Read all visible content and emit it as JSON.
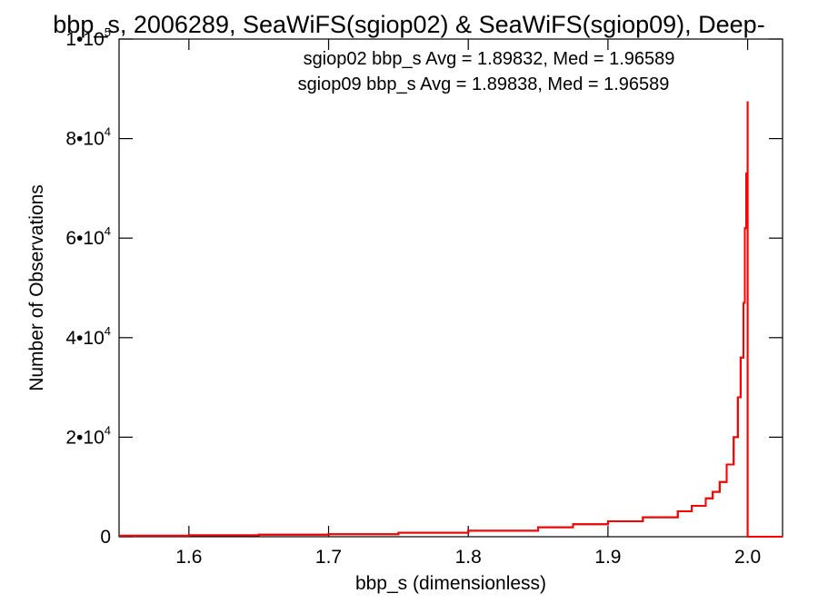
{
  "chart_data": {
    "type": "line",
    "title": "bbp_s, 2006289, SeaWiFS(sgiop02) & SeaWiFS(sgiop09), Deep-",
    "xlabel": "bbp_s (dimensionless)",
    "ylabel": "Number of Observations",
    "xlim": [
      1.55,
      2.025
    ],
    "ylim": [
      0,
      100000
    ],
    "x_ticks": [
      {
        "value": 1.6,
        "label": "1.6"
      },
      {
        "value": 1.7,
        "label": "1.7"
      },
      {
        "value": 1.8,
        "label": "1.8"
      },
      {
        "value": 1.9,
        "label": "1.9"
      },
      {
        "value": 2.0,
        "label": "2.0"
      }
    ],
    "y_ticks": [
      {
        "value": 0,
        "mantissa": "0",
        "exponent": ""
      },
      {
        "value": 20000,
        "mantissa": "2•10",
        "exponent": "4"
      },
      {
        "value": 40000,
        "mantissa": "4•10",
        "exponent": "4"
      },
      {
        "value": 60000,
        "mantissa": "6•10",
        "exponent": "4"
      },
      {
        "value": 80000,
        "mantissa": "8•10",
        "exponent": "4"
      },
      {
        "value": 100000,
        "mantissa": "1•10",
        "exponent": "5"
      }
    ],
    "grid": false,
    "legend_position": "top-right",
    "series": [
      {
        "name": "sgiop02",
        "label": "sgiop02 bbp_s Avg = 1.89832, Med = 1.96589",
        "color": "#000000",
        "x": [
          1.55,
          1.6,
          1.65,
          1.7,
          1.75,
          1.8,
          1.85,
          1.875,
          1.9,
          1.925,
          1.95,
          1.96,
          1.97,
          1.975,
          1.98,
          1.985,
          1.99,
          1.993,
          1.995,
          1.997,
          1.998,
          1.999,
          2.0,
          2.0,
          2.025
        ],
        "y": [
          200,
          300,
          400,
          500,
          800,
          1200,
          1900,
          2500,
          3100,
          3900,
          5100,
          6200,
          7700,
          9000,
          11000,
          14500,
          20000,
          28000,
          36000,
          47000,
          62000,
          73000,
          87500,
          0,
          0
        ]
      },
      {
        "name": "sgiop09",
        "label": "sgiop09 bbp_s Avg = 1.89838, Med = 1.96589",
        "color": "#ff0000",
        "x": [
          1.55,
          1.6,
          1.65,
          1.7,
          1.75,
          1.8,
          1.85,
          1.875,
          1.9,
          1.925,
          1.95,
          1.96,
          1.97,
          1.975,
          1.98,
          1.985,
          1.99,
          1.993,
          1.995,
          1.997,
          1.998,
          1.999,
          2.0,
          2.0,
          2.025
        ],
        "y": [
          200,
          300,
          400,
          500,
          800,
          1200,
          1900,
          2500,
          3100,
          3900,
          5100,
          6200,
          7700,
          9000,
          11000,
          14500,
          20000,
          28000,
          36000,
          47000,
          62000,
          73000,
          87500,
          0,
          0
        ]
      }
    ]
  }
}
